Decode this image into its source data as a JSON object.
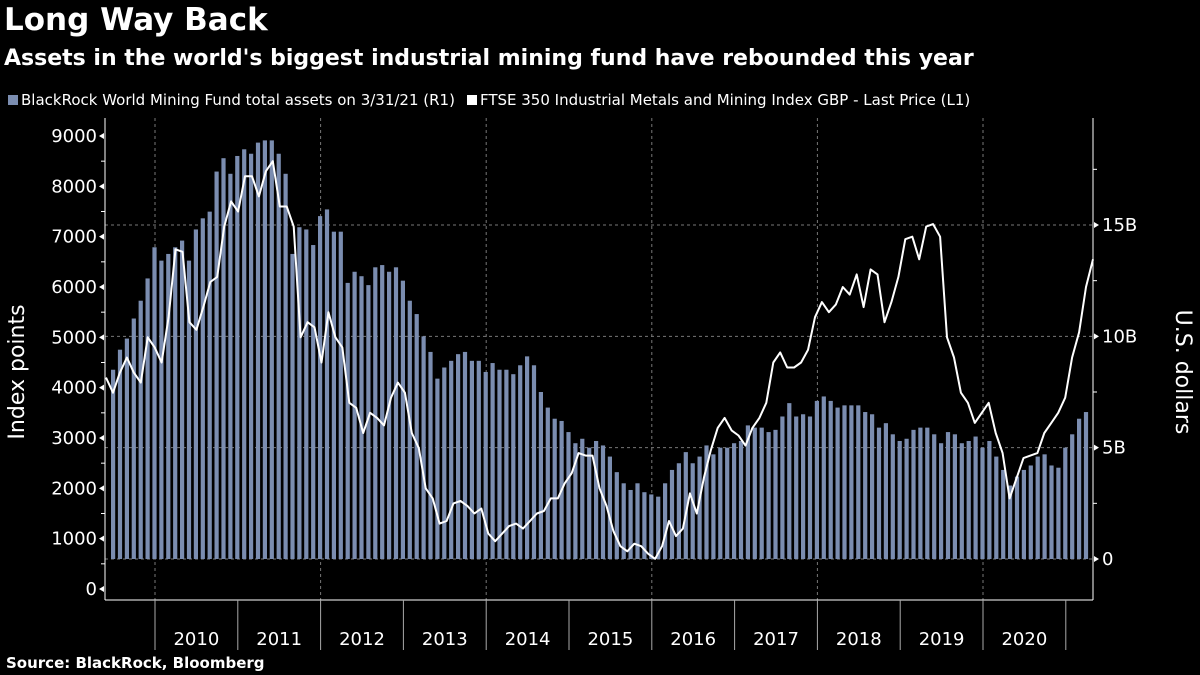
{
  "header": {
    "title": "Long Way Back",
    "subtitle": "Assets in the world's biggest industrial mining fund have rebounded this year"
  },
  "legend": [
    {
      "label": "BlackRock World Mining Fund total assets on 3/31/21 (R1)",
      "color": "#7b8db0"
    },
    {
      "label": "FTSE 350 Industrial Metals and Mining Index GBP - Last Price (L1)",
      "color": "#ffffff"
    }
  ],
  "source": "Source: BlackRock, Bloomberg",
  "chart_data": {
    "type": "bar+line",
    "title": "Long Way Back",
    "subtitle": "Assets in the world's biggest industrial mining fund have rebounded this year",
    "start_month": "2009-06",
    "end_month": "2021-03",
    "frequency": "monthly",
    "x_tick_labels": [
      "2010",
      "2011",
      "2012",
      "2013",
      "2014",
      "2015",
      "2016",
      "2017",
      "2018",
      "2019",
      "2020"
    ],
    "left_axis": {
      "label": "Index points",
      "range": [
        0,
        9000
      ],
      "ticks": [
        0,
        1000,
        2000,
        3000,
        4000,
        5000,
        6000,
        7000,
        8000,
        9000
      ]
    },
    "right_axis": {
      "label": "U.S. dollars",
      "range_billions": [
        0,
        19
      ],
      "ticks": [
        0,
        5,
        10,
        15
      ],
      "tick_labels": [
        "0",
        "5B",
        "10B",
        "15B"
      ]
    },
    "grid": true,
    "legend_position": "top",
    "series": [
      {
        "name": "BlackRock World Mining Fund total assets on 3/31/21 (R1)",
        "type": "bar",
        "axis": "right",
        "units": "billions USD",
        "values": [
          8.5,
          9.4,
          9.9,
          10.8,
          11.6,
          12.6,
          14.0,
          13.4,
          13.7,
          14.0,
          14.3,
          13.4,
          14.8,
          15.3,
          15.6,
          17.4,
          18.0,
          17.3,
          18.1,
          18.4,
          18.2,
          18.7,
          18.8,
          18.8,
          18.2,
          17.3,
          13.7,
          14.9,
          14.8,
          14.1,
          15.4,
          15.7,
          14.7,
          14.7,
          12.4,
          12.9,
          12.7,
          12.3,
          13.1,
          13.2,
          12.9,
          13.1,
          12.5,
          11.6,
          11.0,
          10.0,
          9.3,
          8.1,
          8.6,
          8.9,
          9.2,
          9.3,
          8.9,
          8.9,
          8.4,
          8.8,
          8.5,
          8.5,
          8.3,
          8.7,
          9.1,
          8.7,
          7.5,
          6.8,
          6.3,
          6.2,
          5.7,
          5.2,
          5.4,
          5.0,
          5.3,
          5.1,
          4.6,
          3.9,
          3.4,
          3.1,
          3.4,
          3.0,
          2.9,
          2.8,
          3.4,
          4.0,
          4.3,
          4.8,
          4.3,
          4.6,
          5.1,
          4.7,
          5.0,
          5.0,
          5.2,
          5.3,
          6.0,
          5.9,
          5.9,
          5.7,
          5.8,
          6.4,
          7.0,
          6.4,
          6.5,
          6.4,
          7.1,
          7.3,
          7.1,
          6.8,
          6.9,
          6.9,
          6.9,
          6.6,
          6.5,
          5.9,
          6.1,
          5.6,
          5.3,
          5.4,
          5.8,
          5.9,
          5.9,
          5.6,
          5.2,
          5.7,
          5.6,
          5.2,
          5.3,
          5.5,
          5.0,
          5.3,
          4.6,
          4.0,
          3.3,
          3.7,
          4.0,
          4.2,
          4.6,
          4.7,
          4.2,
          4.1,
          5.0,
          5.6,
          6.3,
          6.6
        ]
      },
      {
        "name": "FTSE 350 Industrial Metals and Mining Index GBP - Last Price (L1)",
        "type": "line",
        "axis": "left",
        "units": "index points",
        "values": [
          4200,
          3900,
          4300,
          4600,
          4300,
          4100,
          5000,
          4800,
          4500,
          5400,
          6750,
          6700,
          5300,
          5150,
          5600,
          6100,
          6200,
          7200,
          7700,
          7500,
          8200,
          8200,
          7800,
          8300,
          8500,
          7600,
          7600,
          7200,
          5000,
          5300,
          5200,
          4500,
          5500,
          5000,
          4800,
          3700,
          3600,
          3100,
          3500,
          3400,
          3250,
          3800,
          4100,
          3900,
          3100,
          2800,
          2000,
          1800,
          1300,
          1350,
          1700,
          1750,
          1650,
          1500,
          1600,
          1100,
          950,
          1100,
          1250,
          1300,
          1200,
          1350,
          1500,
          1550,
          1800,
          1800,
          2100,
          2300,
          2700,
          2650,
          2650,
          2000,
          1650,
          1150,
          850,
          750,
          900,
          850,
          700,
          600,
          850,
          1350,
          1050,
          1200,
          1900,
          1500,
          2200,
          2750,
          3200,
          3400,
          3150,
          3050,
          2850,
          3200,
          3400,
          3700,
          4500,
          4700,
          4400,
          4400,
          4500,
          4750,
          5400,
          5700,
          5500,
          5650,
          6000,
          5850,
          6250,
          5600,
          6350,
          6250,
          5300,
          5700,
          6200,
          6950,
          7000,
          6550,
          7200,
          7250,
          7000,
          5000,
          4600,
          3900,
          3700,
          3300,
          3500,
          3700,
          3100,
          2700,
          1800,
          2200,
          2600,
          2650,
          2700,
          3100,
          3300,
          3500,
          3800,
          4600,
          5100,
          6000,
          6550
        ]
      }
    ]
  }
}
